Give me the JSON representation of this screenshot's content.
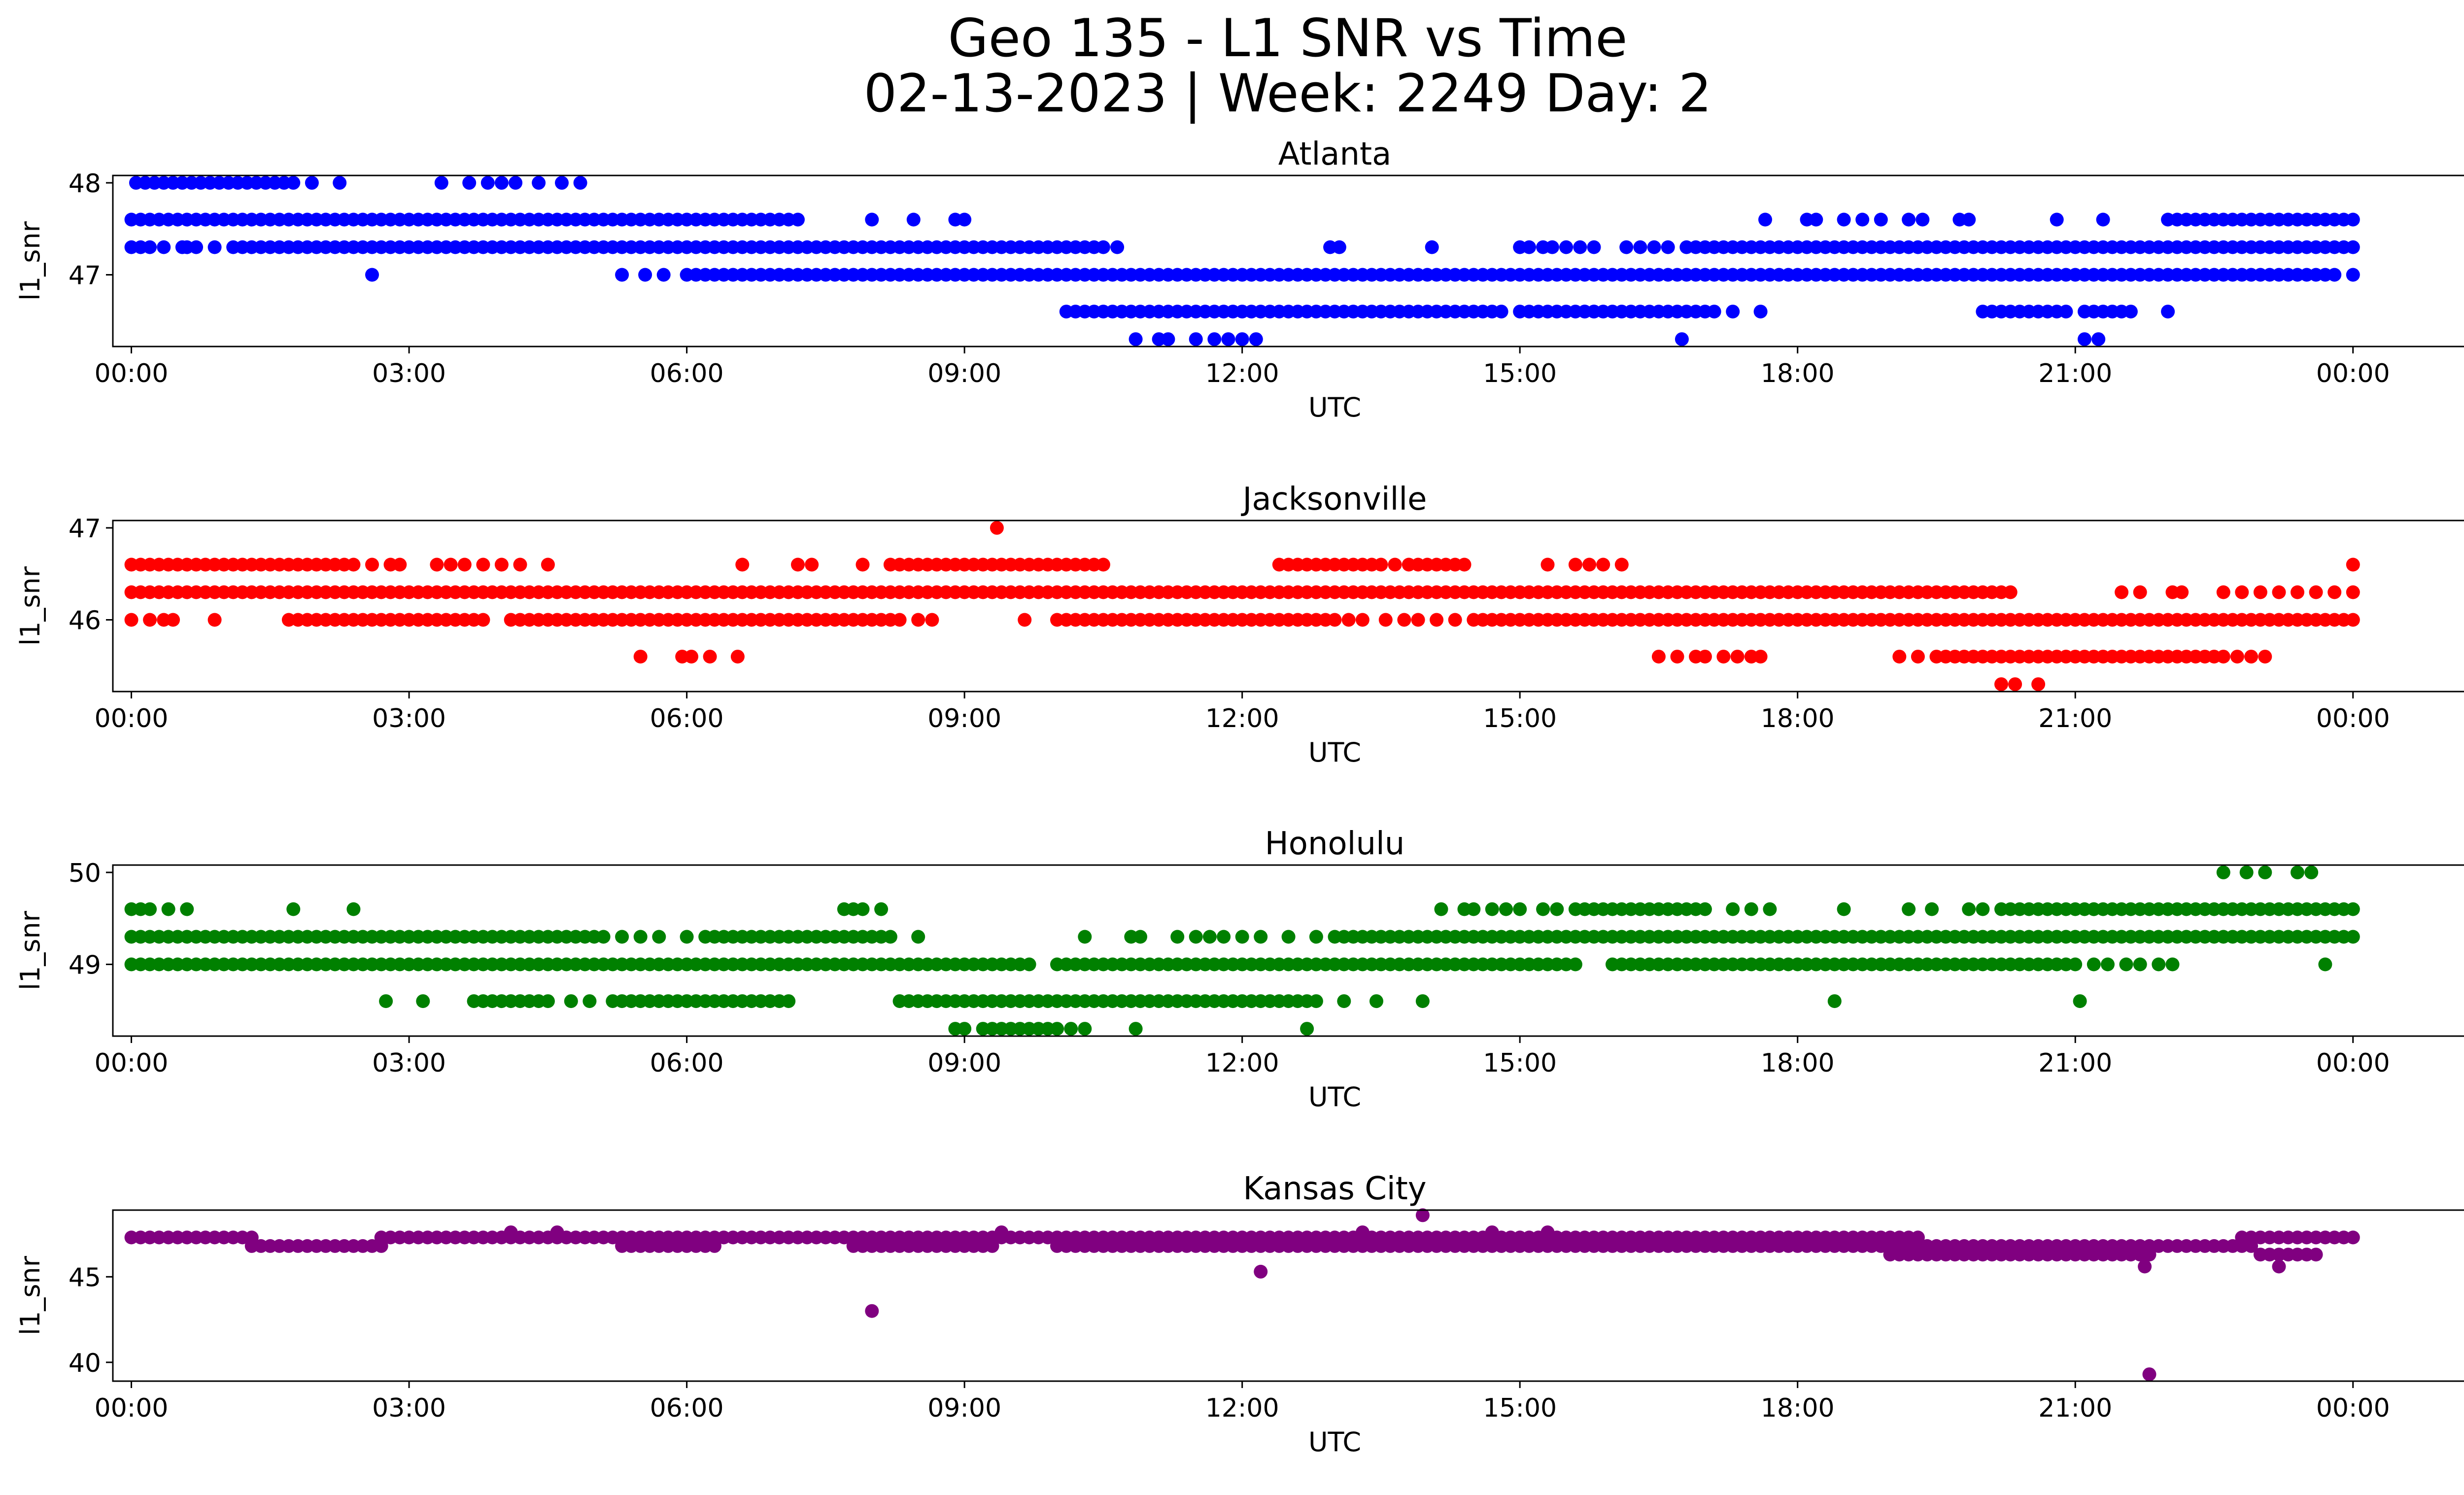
{
  "figure": {
    "title_line1": "Geo 135 - L1 SNR vs Time",
    "title_line2": "02-13-2023 | Week: 2249 Day: 2"
  },
  "chart_data": [
    {
      "type": "scatter",
      "title": "Atlanta",
      "xlabel": "UTC",
      "ylabel": "l1_snr",
      "color": "#0000ff",
      "xlim": [
        -0.2,
        26.2
      ],
      "ylim": [
        46.22,
        48.08
      ],
      "x_ticks": [
        0,
        3,
        6,
        9,
        12,
        15,
        18,
        21,
        24
      ],
      "x_tick_labels": [
        "00:00",
        "03:00",
        "06:00",
        "09:00",
        "12:00",
        "15:00",
        "18:00",
        "21:00",
        "00:00"
      ],
      "y_ticks": [
        47,
        48
      ],
      "y_tick_labels": [
        "47",
        "48"
      ],
      "series": [
        {
          "y": 48.0,
          "ranges": [
            [
              0.05,
              0.4
            ],
            [
              0.45,
              1.75
            ]
          ],
          "points": [
            1.95,
            2.25,
            3.35,
            3.65,
            3.85,
            4.0,
            4.15,
            4.4,
            4.65,
            4.85
          ]
        },
        {
          "y": 47.6,
          "ranges": [
            [
              0.0,
              6.2
            ],
            [
              6.4,
              7.2
            ],
            [
              22.0,
              24.0
            ]
          ],
          "points": [
            6.3,
            8.0,
            8.45,
            8.9,
            9.0,
            17.65,
            18.1,
            18.2,
            18.5,
            18.7,
            18.9,
            19.2,
            19.35,
            19.75,
            19.85,
            20.8,
            21.3
          ]
        },
        {
          "y": 47.3,
          "ranges": [
            [
              0.0,
              0.2
            ],
            [
              1.1,
              10.5
            ],
            [
              16.8,
              24.0
            ]
          ],
          "points": [
            0.35,
            0.55,
            0.6,
            0.7,
            0.9,
            10.65,
            12.95,
            13.05,
            14.05,
            15.0,
            15.1,
            15.25,
            15.35,
            15.5,
            15.65,
            15.8,
            16.15,
            16.3,
            16.45,
            16.6
          ]
        },
        {
          "y": 47.0,
          "ranges": [
            [
              6.0,
              23.7
            ]
          ],
          "points": [
            2.6,
            5.3,
            5.55,
            5.75,
            23.8,
            24.0
          ]
        },
        {
          "y": 46.6,
          "ranges": [
            [
              10.1,
              14.7
            ],
            [
              15.0,
              16.5
            ],
            [
              16.7,
              17.1
            ],
            [
              20.0,
              20.9
            ],
            [
              21.1,
              21.5
            ]
          ],
          "points": [
            14.8,
            15.7,
            15.8,
            16.6,
            17.3,
            17.6,
            21.6,
            22.0
          ]
        },
        {
          "y": 46.3,
          "points": [
            10.85,
            11.1,
            11.2,
            11.5,
            11.7,
            11.85,
            12.0,
            12.15,
            16.75,
            21.1,
            21.25
          ]
        }
      ]
    },
    {
      "type": "scatter",
      "title": "Jacksonville",
      "xlabel": "UTC",
      "ylabel": "l1_snr",
      "color": "#ff0000",
      "xlim": [
        -0.2,
        26.2
      ],
      "ylim": [
        45.22,
        47.08
      ],
      "x_ticks": [
        0,
        3,
        6,
        9,
        12,
        15,
        18,
        21,
        24
      ],
      "x_tick_labels": [
        "00:00",
        "03:00",
        "06:00",
        "09:00",
        "12:00",
        "15:00",
        "18:00",
        "21:00",
        "00:00"
      ],
      "y_ticks": [
        46,
        47
      ],
      "y_tick_labels": [
        "46",
        "47"
      ],
      "series": [
        {
          "y": 47.0,
          "points": [
            9.35
          ]
        },
        {
          "y": 46.6,
          "ranges": [
            [
              0.0,
              2.4
            ],
            [
              8.2,
              9.8
            ],
            [
              9.9,
              10.5
            ],
            [
              12.5,
              13.5
            ],
            [
              13.8,
              14.4
            ]
          ],
          "points": [
            2.6,
            2.8,
            2.9,
            3.3,
            3.45,
            3.6,
            3.8,
            4.0,
            4.2,
            4.5,
            6.6,
            7.2,
            7.35,
            7.9,
            12.4,
            13.65,
            15.3,
            15.6,
            15.75,
            15.9,
            16.1,
            24.0
          ]
        },
        {
          "y": 46.3,
          "ranges": [
            [
              0.0,
              20.3
            ]
          ],
          "points": [
            21.5,
            21.7,
            22.05,
            22.15,
            22.6,
            22.8,
            23.0,
            23.2,
            23.4,
            23.6,
            23.8,
            24.0
          ]
        },
        {
          "y": 46.0,
          "ranges": [
            [
              1.7,
              3.8
            ],
            [
              4.3,
              8.3
            ],
            [
              10.2,
              13.0
            ],
            [
              14.5,
              24.0
            ]
          ],
          "points": [
            0.0,
            0.2,
            0.35,
            0.45,
            0.9,
            4.1,
            4.2,
            8.5,
            8.65,
            9.65,
            10.0,
            10.1,
            13.15,
            13.3,
            13.55,
            13.75,
            13.9,
            14.1,
            14.3
          ]
        },
        {
          "y": 45.6,
          "ranges": [
            [
              19.5,
              22.5
            ]
          ],
          "points": [
            5.5,
            5.95,
            6.05,
            6.25,
            6.55,
            16.5,
            16.7,
            16.9,
            17.0,
            17.2,
            17.35,
            17.5,
            17.6,
            19.1,
            19.3,
            22.6,
            22.75,
            22.9,
            23.05
          ]
        },
        {
          "y": 45.3,
          "points": [
            20.2,
            20.35,
            20.6
          ]
        }
      ]
    },
    {
      "type": "scatter",
      "title": "Honolulu",
      "xlabel": "UTC",
      "ylabel": "l1_snr",
      "color": "#008000",
      "xlim": [
        -0.2,
        26.2
      ],
      "ylim": [
        48.22,
        50.08
      ],
      "x_ticks": [
        0,
        3,
        6,
        9,
        12,
        15,
        18,
        21,
        24
      ],
      "x_tick_labels": [
        "00:00",
        "03:00",
        "06:00",
        "09:00",
        "12:00",
        "15:00",
        "18:00",
        "21:00",
        "00:00"
      ],
      "y_ticks": [
        49,
        50
      ],
      "y_tick_labels": [
        "49",
        "50"
      ],
      "series": [
        {
          "y": 50.0,
          "points": [
            22.6,
            22.85,
            23.05,
            23.4,
            23.55
          ]
        },
        {
          "y": 49.6,
          "ranges": [
            [
              15.6,
              17.0
            ],
            [
              20.2,
              21.2
            ],
            [
              21.2,
              24.0
            ]
          ],
          "points": [
            0.0,
            0.1,
            0.2,
            0.4,
            0.6,
            1.75,
            2.4,
            7.7,
            7.8,
            7.9,
            8.1,
            14.15,
            14.4,
            14.5,
            14.7,
            14.85,
            15.0,
            15.25,
            15.4,
            17.3,
            17.5,
            17.7,
            18.5,
            19.2,
            19.45,
            19.85,
            20.0
          ]
        },
        {
          "y": 49.3,
          "ranges": [
            [
              0.0,
              5.1
            ],
            [
              6.2,
              8.2
            ],
            [
              13.0,
              24.0
            ]
          ],
          "points": [
            5.3,
            5.5,
            5.7,
            6.0,
            8.5,
            10.3,
            10.8,
            10.9,
            11.3,
            11.5,
            11.65,
            11.8,
            12.0,
            12.2,
            12.5,
            12.8
          ]
        },
        {
          "y": 49.0,
          "ranges": [
            [
              0.0,
              9.7
            ],
            [
              10.0,
              15.6
            ],
            [
              16.0,
              21.0
            ]
          ],
          "points": [
            21.2,
            21.35,
            21.55,
            21.7,
            21.9,
            22.05,
            23.7
          ]
        },
        {
          "y": 48.6,
          "ranges": [
            [
              3.7,
              4.5
            ],
            [
              5.2,
              7.0
            ],
            [
              8.3,
              12.8
            ]
          ],
          "points": [
            2.75,
            3.15,
            4.75,
            4.95,
            7.1,
            13.1,
            13.45,
            13.95,
            18.4,
            21.05
          ]
        },
        {
          "y": 48.3,
          "ranges": [
            [
              9.2,
              10.0
            ]
          ],
          "points": [
            8.9,
            9.0,
            10.15,
            10.3,
            10.85,
            12.7
          ]
        }
      ]
    },
    {
      "type": "scatter",
      "title": "Kansas City",
      "xlabel": "UTC",
      "ylabel": "l1_snr",
      "color": "#800080",
      "xlim": [
        -0.2,
        26.2
      ],
      "ylim": [
        38.9,
        48.9
      ],
      "x_ticks": [
        0,
        3,
        6,
        9,
        12,
        15,
        18,
        21,
        24
      ],
      "x_tick_labels": [
        "00:00",
        "03:00",
        "06:00",
        "09:00",
        "12:00",
        "15:00",
        "18:00",
        "21:00",
        "00:00"
      ],
      "y_ticks": [
        40,
        45
      ],
      "y_tick_labels": [
        "40",
        "45"
      ],
      "series": [
        {
          "y": 47.3,
          "ranges": [
            [
              0.0,
              1.3
            ],
            [
              2.7,
              14.9
            ],
            [
              15.0,
              19.3
            ],
            [
              22.8,
              24.0
            ]
          ]
        },
        {
          "y": 46.8,
          "ranges": [
            [
              1.3,
              2.7
            ],
            [
              5.3,
              6.3
            ],
            [
              7.8,
              9.3
            ],
            [
              10.0,
              22.9
            ]
          ]
        },
        {
          "y": 46.3,
          "ranges": [
            [
              19.0,
              21.8
            ],
            [
              23.0,
              23.6
            ]
          ]
        },
        {
          "y": 45.6,
          "points": [
            21.75,
            23.2
          ]
        },
        {
          "y": 48.6,
          "points": [
            13.95
          ]
        },
        {
          "y": 47.6,
          "points": [
            4.1,
            4.6,
            9.4,
            13.3,
            14.7,
            15.3
          ]
        },
        {
          "y": 45.3,
          "points": [
            12.2
          ]
        },
        {
          "y": 43.0,
          "points": [
            8.0
          ]
        },
        {
          "y": 39.3,
          "points": [
            21.8
          ]
        }
      ]
    }
  ]
}
